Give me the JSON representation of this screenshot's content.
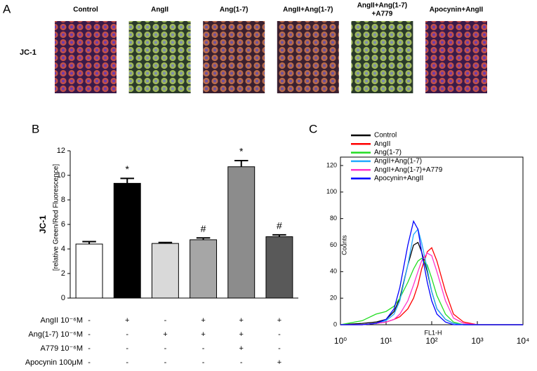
{
  "panel_a": {
    "label": "A",
    "row_label": "JC-1",
    "columns": [
      [
        "Control"
      ],
      [
        "AngII"
      ],
      [
        "Ang(1-7)"
      ],
      [
        "AngII+Ang(1-7)"
      ],
      [
        "AngII+Ang(1-7)",
        "+A779"
      ],
      [
        "Apocynin+AngII"
      ]
    ]
  },
  "chart_data": [
    {
      "type": "bar",
      "panel_label": "B",
      "ylabel": "JC-1",
      "ylabel2": "[relative Green/Red Fluorescence]",
      "values": [
        4.4,
        9.35,
        4.45,
        4.75,
        10.7,
        5.0
      ],
      "errors": [
        0.2,
        0.4,
        0.08,
        0.15,
        0.5,
        0.15
      ],
      "colors": [
        "#ffffff",
        "#000000",
        "#d9d9d9",
        "#a6a6a6",
        "#8c8c8c",
        "#595959"
      ],
      "significance": [
        null,
        "*",
        null,
        "#",
        "*",
        "#"
      ],
      "ylim": [
        0,
        12
      ],
      "yticks": [
        0,
        2,
        4,
        6,
        8,
        10,
        12
      ],
      "treatments": [
        {
          "label": "AngII 10⁻⁶M",
          "signs": [
            "-",
            "+",
            "-",
            "+",
            "+",
            "+"
          ]
        },
        {
          "label": "Ang(1-7) 10⁻⁶M",
          "signs": [
            "-",
            "-",
            "+",
            "+",
            "+",
            "-"
          ]
        },
        {
          "label": "A779 10⁻⁶M",
          "signs": [
            "-",
            "-",
            "-",
            "-",
            "+",
            "-"
          ]
        },
        {
          "label": "Apocynin 100μM",
          "signs": [
            "-",
            "-",
            "-",
            "-",
            "-",
            "+"
          ]
        }
      ]
    },
    {
      "type": "line",
      "panel_label": "C",
      "xlabel": "FL1-H",
      "ylabel": "Counts",
      "xscale": "log",
      "legend": "upper left",
      "x": [
        1,
        3,
        6,
        10,
        15,
        20,
        30,
        40,
        50,
        60,
        80,
        100,
        130,
        200,
        300,
        500,
        1000,
        10000
      ],
      "series": [
        {
          "name": "Control",
          "color": "#000000",
          "values": [
            0,
            1,
            2,
            4,
            10,
            20,
            45,
            60,
            62,
            55,
            40,
            25,
            12,
            4,
            1,
            0,
            0,
            0
          ]
        },
        {
          "name": "AngII",
          "color": "#ff0000",
          "values": [
            0,
            0,
            1,
            2,
            4,
            6,
            12,
            20,
            30,
            42,
            55,
            58,
            48,
            25,
            8,
            2,
            0,
            0
          ]
        },
        {
          "name": "Ang(1-7)",
          "color": "#22dd22",
          "values": [
            0,
            3,
            8,
            10,
            14,
            20,
            32,
            42,
            48,
            50,
            45,
            35,
            22,
            8,
            2,
            0,
            0,
            0
          ]
        },
        {
          "name": "AngII+Ang(1-7)",
          "color": "#22aaff",
          "values": [
            0,
            0,
            1,
            3,
            8,
            18,
            45,
            68,
            72,
            62,
            42,
            25,
            12,
            4,
            1,
            0,
            0,
            0
          ]
        },
        {
          "name": "AngII+Ang(1-7)+A779",
          "color": "#ff33cc",
          "values": [
            0,
            0,
            1,
            2,
            4,
            8,
            18,
            30,
            40,
            48,
            54,
            52,
            40,
            18,
            5,
            1,
            0,
            0
          ]
        },
        {
          "name": "Apocynin+AngII",
          "color": "#0000ff",
          "values": [
            0,
            0,
            1,
            4,
            12,
            28,
            60,
            78,
            72,
            55,
            32,
            18,
            8,
            2,
            0,
            0,
            0,
            0
          ]
        }
      ],
      "xlim": [
        1,
        10000
      ],
      "xticks": [
        {
          "value": 1,
          "label": "10⁰"
        },
        {
          "value": 10,
          "label": "10¹"
        },
        {
          "value": 100,
          "label": "10²"
        },
        {
          "value": 1000,
          "label": "10³"
        },
        {
          "value": 10000,
          "label": "10⁴"
        }
      ],
      "ylim": [
        0,
        120
      ],
      "yticks": [
        0,
        20,
        40,
        60,
        80,
        100,
        120
      ]
    }
  ]
}
